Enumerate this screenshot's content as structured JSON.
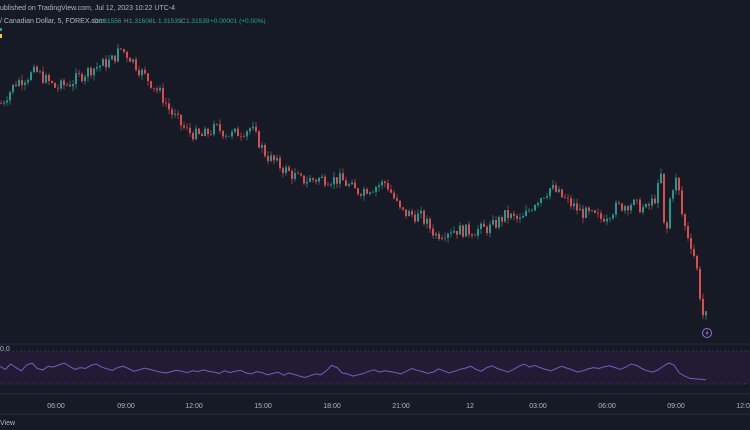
{
  "header": {
    "published": "ublished on TradingView.com, Jul 12, 2023 10:22 UTC-4",
    "symbol": "/ Canadian Dollar, 5, FOREX.com",
    "open_label": "O",
    "open": "1.31556",
    "high_label": "H",
    "high": "1.31608",
    "low_label": "L",
    "low": "1.31539",
    "close_label": "C",
    "close": "1.31539",
    "change": "+0.00001 (+0.00%)"
  },
  "rsi_pane": {
    "label": "0.0"
  },
  "footer": {
    "brand": "View"
  },
  "colors": {
    "background": "#161a25",
    "up": "#26a69a",
    "down": "#ef5350",
    "rsi_line": "#7e57c2",
    "rsi_band": "#2a2340"
  },
  "icons": {
    "marker": "lightning-bolt-icon"
  },
  "chart_data": [
    {
      "type": "candlestick",
      "title": "",
      "x_ticks": [
        "06:00",
        "09:00",
        "12:00",
        "15:00",
        "18:00",
        "21:00",
        "12",
        "03:00",
        "06:00",
        "09:00",
        "12:00"
      ],
      "grid": false,
      "legend": "none",
      "keyframes": [
        [
          0,
          1.3205
        ],
        [
          15,
          1.3228
        ],
        [
          35,
          1.324
        ],
        [
          55,
          1.3222
        ],
        [
          70,
          1.3228
        ],
        [
          90,
          1.3243
        ],
        [
          110,
          1.3252
        ],
        [
          120,
          1.3265
        ],
        [
          130,
          1.3255
        ],
        [
          140,
          1.324
        ],
        [
          150,
          1.3228
        ],
        [
          160,
          1.3215
        ],
        [
          170,
          1.3195
        ],
        [
          185,
          1.3175
        ],
        [
          200,
          1.3168
        ],
        [
          215,
          1.3178
        ],
        [
          230,
          1.317
        ],
        [
          250,
          1.3178
        ],
        [
          265,
          1.3148
        ],
        [
          280,
          1.3135
        ],
        [
          300,
          1.312
        ],
        [
          320,
          1.3122
        ],
        [
          340,
          1.3121
        ],
        [
          355,
          1.3108
        ],
        [
          370,
          1.3112
        ],
        [
          385,
          1.3118
        ],
        [
          400,
          1.3085
        ],
        [
          420,
          1.308
        ],
        [
          435,
          1.306
        ],
        [
          450,
          1.3066
        ],
        [
          470,
          1.3064
        ],
        [
          490,
          1.3068
        ],
        [
          505,
          1.3082
        ],
        [
          520,
          1.3075
        ],
        [
          535,
          1.3098
        ],
        [
          550,
          1.3112
        ],
        [
          565,
          1.3098
        ],
        [
          580,
          1.3085
        ],
        [
          600,
          1.3078
        ],
        [
          615,
          1.309
        ],
        [
          630,
          1.3095
        ],
        [
          645,
          1.3088
        ],
        [
          655,
          1.3102
        ],
        [
          660,
          1.3125
        ],
        [
          663,
          1.307
        ],
        [
          665,
          1.3055
        ],
        [
          670,
          1.311
        ],
        [
          676,
          1.3122
        ],
        [
          682,
          1.3075
        ],
        [
          690,
          1.305
        ],
        [
          695,
          1.303
        ],
        [
          700,
          1.2985
        ],
        [
          703,
          1.2965
        ],
        [
          706,
          1.2972
        ]
      ],
      "y_range": [
        1.2955,
        1.3275
      ]
    },
    {
      "type": "line",
      "title": "RSI",
      "series": [
        {
          "values": [
            55,
            48,
            60,
            52,
            45,
            58,
            62,
            50,
            47,
            55,
            53,
            58,
            62,
            55,
            48,
            52,
            50,
            57,
            60,
            53,
            49,
            46,
            52,
            55,
            50,
            44,
            47,
            51,
            48,
            45,
            42,
            40,
            43,
            46,
            44,
            41,
            45,
            43,
            47,
            44,
            42,
            39,
            45,
            41,
            44,
            46,
            40,
            38,
            43,
            41,
            36,
            39,
            42,
            35,
            40,
            37,
            33,
            30,
            34,
            38,
            36,
            45,
            57,
            52,
            40,
            38,
            33,
            36,
            39,
            44,
            47,
            42,
            45,
            43,
            41,
            38,
            44,
            50,
            46,
            43,
            39,
            42,
            49,
            45,
            40,
            44,
            48,
            51,
            55,
            48,
            44,
            52,
            56,
            50,
            46,
            42,
            48,
            55,
            60,
            53,
            57,
            52,
            48,
            45,
            50,
            55,
            51,
            47,
            42,
            45,
            49,
            52,
            50,
            54,
            56,
            52,
            48,
            53,
            60,
            57,
            50,
            45,
            42,
            47,
            55,
            62,
            58,
            40,
            33,
            28,
            27,
            26,
            25
          ]
        }
      ],
      "y_range": [
        0,
        100
      ]
    }
  ]
}
